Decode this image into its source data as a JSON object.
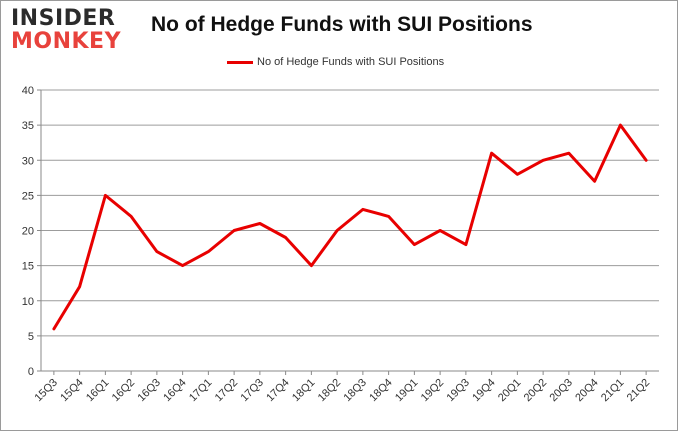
{
  "logo": {
    "line1": "INSIDER",
    "line2": "MONKEY"
  },
  "chart_data": {
    "type": "line",
    "title": "No of Hedge Funds with SUI Positions",
    "xlabel": "",
    "ylabel": "",
    "ylim": [
      0,
      40
    ],
    "yticks": [
      0,
      5,
      10,
      15,
      20,
      25,
      30,
      35,
      40
    ],
    "grid": true,
    "legend_position": "top-center",
    "categories": [
      "15Q3",
      "15Q4",
      "16Q1",
      "16Q2",
      "16Q3",
      "16Q4",
      "17Q1",
      "17Q2",
      "17Q3",
      "17Q4",
      "18Q1",
      "18Q2",
      "18Q3",
      "18Q4",
      "19Q1",
      "19Q2",
      "19Q3",
      "19Q4",
      "20Q1",
      "20Q2",
      "20Q3",
      "20Q4",
      "21Q1",
      "21Q2"
    ],
    "series": [
      {
        "name": "No of Hedge Funds with SUI Positions",
        "color": "#e80000",
        "values": [
          6,
          12,
          25,
          22,
          17,
          15,
          17,
          20,
          21,
          19,
          15,
          20,
          23,
          22,
          18,
          20,
          18,
          31,
          28,
          30,
          31,
          27,
          35,
          30
        ]
      }
    ]
  }
}
